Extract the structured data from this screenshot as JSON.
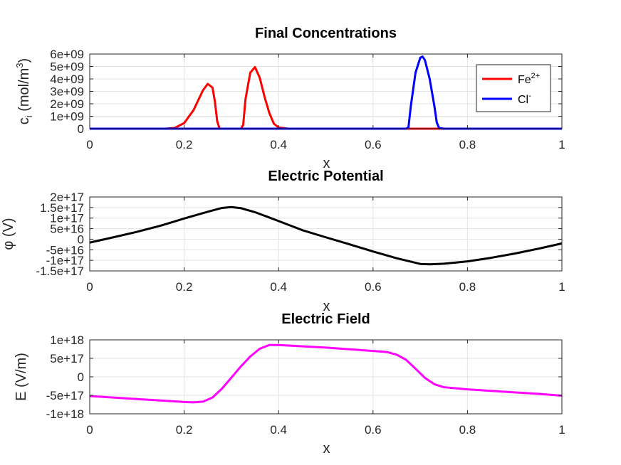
{
  "chart_data": [
    {
      "type": "line",
      "title": "Final Concentrations",
      "xlabel": "x",
      "ylabel_main": "c",
      "ylabel_sub": "i",
      "ylabel_rest": " (mol/m",
      "ylabel_sup": "3",
      "ylabel_close": ")",
      "xlim": [
        0,
        1
      ],
      "ylim": [
        0,
        6000000000
      ],
      "xticks": [
        0,
        0.2,
        0.4,
        0.6,
        0.8,
        1
      ],
      "xtick_labels": [
        "0",
        "0.2",
        "0.4",
        "0.6",
        "0.8",
        "1"
      ],
      "yticks": [
        0,
        1000000000,
        2000000000,
        3000000000,
        4000000000,
        5000000000,
        6000000000
      ],
      "ytick_labels": [
        "0",
        "1e+09",
        "2e+09",
        "3e+09",
        "4e+09",
        "5e+09",
        "6e+09"
      ],
      "grid": true,
      "legend_position": "top-right",
      "series": [
        {
          "name": "Fe",
          "name_sup": "2+",
          "color": "#ff0000",
          "x": [
            0,
            0.16,
            0.18,
            0.2,
            0.22,
            0.24,
            0.25,
            0.26,
            0.265,
            0.27,
            0.275,
            0.32,
            0.325,
            0.33,
            0.34,
            0.35,
            0.36,
            0.37,
            0.38,
            0.39,
            0.4,
            0.42,
            0.68,
            0.74,
            1
          ],
          "y": [
            0,
            0,
            60000000,
            450000000,
            1500000000,
            3100000000,
            3600000000,
            3300000000,
            2200000000,
            600000000,
            0,
            0,
            300000000,
            2400000000,
            4500000000,
            4950000000,
            4100000000,
            2600000000,
            1300000000,
            400000000,
            100000000,
            0,
            0,
            0,
            0
          ]
        },
        {
          "name": "Cl",
          "name_sup": "-",
          "color": "#0000ff",
          "x": [
            0,
            0.66,
            0.67,
            0.675,
            0.68,
            0.69,
            0.7,
            0.705,
            0.71,
            0.72,
            0.73,
            0.735,
            0.74,
            0.75,
            1
          ],
          "y": [
            0,
            0,
            0,
            100000000,
            1800000000,
            4500000000,
            5700000000,
            5800000000,
            5500000000,
            4000000000,
            1800000000,
            500000000,
            50000000,
            0,
            0
          ]
        }
      ]
    },
    {
      "type": "line",
      "title": "Electric Potential",
      "xlabel": "x",
      "ylabel": "φ (V)",
      "xlim": [
        0,
        1
      ],
      "ylim": [
        -150000000000000000,
        200000000000000000
      ],
      "xticks": [
        0,
        0.2,
        0.4,
        0.6,
        0.8,
        1
      ],
      "xtick_labels": [
        "0",
        "0.2",
        "0.4",
        "0.6",
        "0.8",
        "1"
      ],
      "yticks": [
        -150000000000000000,
        -100000000000000000,
        -50000000000000000,
        0,
        50000000000000000,
        100000000000000000,
        150000000000000000,
        200000000000000000
      ],
      "ytick_labels": [
        "-1.5e+17",
        "-1e+17",
        "-5e+16",
        "0",
        "5e+16",
        "1e+17",
        "1.5e+17",
        "2e+17"
      ],
      "grid": true,
      "series": [
        {
          "name": "",
          "color": "#000000",
          "x": [
            0,
            0.05,
            0.1,
            0.15,
            0.2,
            0.25,
            0.28,
            0.3,
            0.32,
            0.35,
            0.4,
            0.45,
            0.5,
            0.55,
            0.6,
            0.65,
            0.7,
            0.72,
            0.75,
            0.8,
            0.85,
            0.9,
            0.95,
            1
          ],
          "y": [
            -16000000000000000,
            9000000000000000,
            35000000000000000,
            64000000000000000,
            98000000000000000,
            130000000000000000,
            148000000000000000,
            152000000000000000,
            147000000000000000,
            128000000000000000,
            86000000000000000,
            43000000000000000,
            9000000000000000,
            -24000000000000000,
            -58000000000000000,
            -90000000000000000,
            -117000000000000000,
            -119000000000000000,
            -116000000000000000,
            -105000000000000000,
            -88000000000000000,
            -68000000000000000,
            -45000000000000000,
            -20000000000000000
          ]
        }
      ]
    },
    {
      "type": "line",
      "title": "Electric Field",
      "xlabel": "x",
      "ylabel": "E (V/m)",
      "xlim": [
        0,
        1
      ],
      "ylim": [
        -1000000000000000000,
        1000000000000000000
      ],
      "xticks": [
        0,
        0.2,
        0.4,
        0.6,
        0.8,
        1
      ],
      "xtick_labels": [
        "0",
        "0.2",
        "0.4",
        "0.6",
        "0.8",
        "1"
      ],
      "yticks": [
        -1000000000000000000,
        -500000000000000000,
        0,
        500000000000000000,
        1000000000000000000
      ],
      "ytick_labels": [
        "-1e+18",
        "-5e+17",
        "0",
        "5e+17",
        "1e+18"
      ],
      "grid": true,
      "series": [
        {
          "name": "",
          "color": "#ff00ff",
          "x": [
            0,
            0.05,
            0.1,
            0.15,
            0.2,
            0.22,
            0.24,
            0.26,
            0.28,
            0.3,
            0.32,
            0.34,
            0.36,
            0.38,
            0.4,
            0.5,
            0.6,
            0.63,
            0.65,
            0.67,
            0.69,
            0.71,
            0.73,
            0.75,
            0.8,
            0.85,
            0.9,
            0.95,
            1
          ],
          "y": [
            -520000000000000000,
            -560000000000000000,
            -600000000000000000,
            -640000000000000000,
            -680000000000000000,
            -690000000000000000,
            -670000000000000000,
            -560000000000000000,
            -320000000000000000,
            -20000000000000000,
            280000000000000000,
            550000000000000000,
            760000000000000000,
            860000000000000000,
            860000000000000000,
            790000000000000000,
            700000000000000000,
            670000000000000000,
            600000000000000000,
            460000000000000000,
            220000000000000000,
            -30000000000000000,
            -200000000000000000,
            -280000000000000000,
            -340000000000000000,
            -380000000000000000,
            -420000000000000000,
            -460000000000000000,
            -510000000000000000
          ]
        }
      ]
    }
  ]
}
